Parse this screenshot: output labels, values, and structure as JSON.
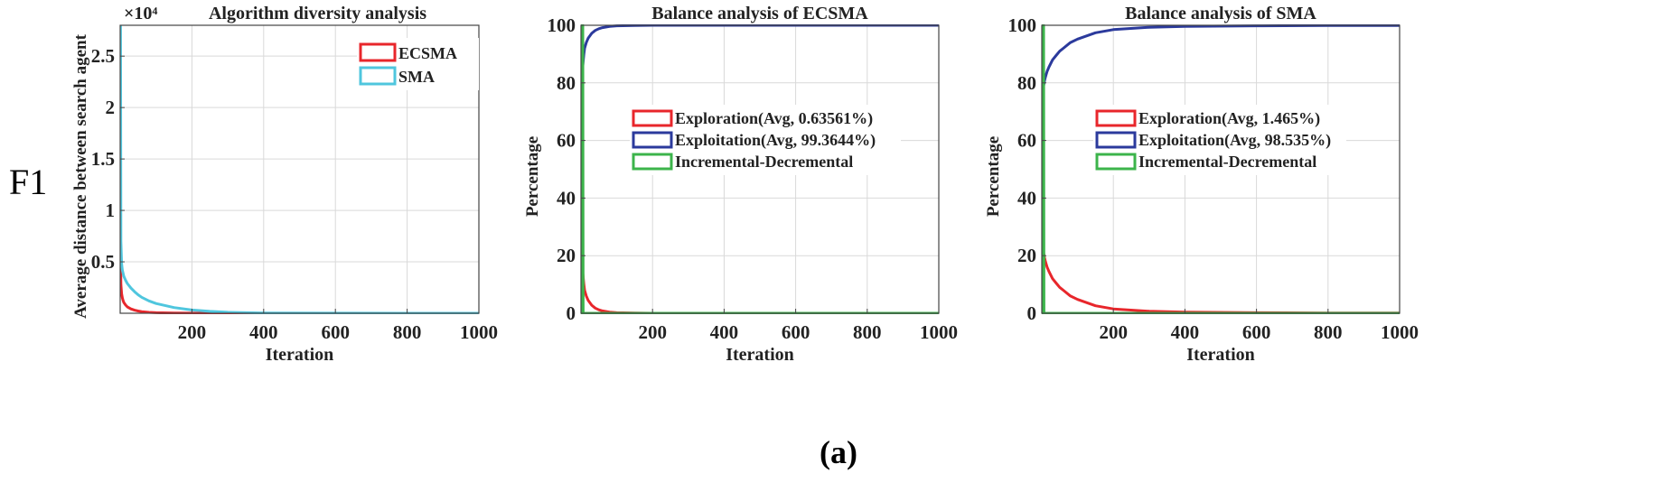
{
  "figure": {
    "side_label": "F1",
    "panel_label": "(a)"
  },
  "colors": {
    "ecsma": "#e8262b",
    "sma": "#4fc6de",
    "exploration": "#e8262b",
    "exploitation": "#2b3a9c",
    "incdec": "#3cb44b",
    "grid": "#d9d9d9",
    "axis": "#444444"
  },
  "chart_data": [
    {
      "type": "line",
      "title": "Algorithm diversity analysis",
      "xlabel": "Iteration",
      "ylabel": "Average distance between search agent",
      "xlim": [
        0,
        1000
      ],
      "ylim": [
        0,
        28000
      ],
      "x_ticks": [
        200,
        400,
        600,
        800,
        1000
      ],
      "y_ticks": [
        5000,
        10000,
        15000,
        20000,
        25000
      ],
      "y_tick_labels": [
        "0.5",
        "1",
        "1.5",
        "2",
        "2.5"
      ],
      "y_exponent": "×10⁴",
      "legend_position": "top-right",
      "series": [
        {
          "name": "ECSMA",
          "color_key": "ecsma",
          "x": [
            1,
            2,
            4,
            6,
            8,
            10,
            15,
            20,
            30,
            40,
            50,
            60,
            80,
            100,
            150,
            200,
            300,
            400,
            600,
            800,
            1000
          ],
          "y": [
            5500,
            2800,
            1900,
            1500,
            1250,
            1050,
            800,
            620,
            420,
            300,
            220,
            160,
            90,
            50,
            15,
            5,
            0,
            0,
            0,
            0,
            0
          ]
        },
        {
          "name": "SMA",
          "color_key": "sma",
          "x": [
            1,
            2,
            4,
            6,
            8,
            10,
            15,
            20,
            30,
            40,
            50,
            60,
            80,
            100,
            150,
            200,
            250,
            300,
            400,
            600,
            800,
            1000
          ],
          "y": [
            28000,
            7000,
            4800,
            4200,
            3900,
            3600,
            3200,
            2900,
            2450,
            2100,
            1800,
            1550,
            1200,
            950,
            550,
            320,
            180,
            100,
            30,
            5,
            0,
            0
          ]
        }
      ]
    },
    {
      "type": "line",
      "title": "Balance analysis of ECSMA",
      "xlabel": "Iteration",
      "ylabel": "Percentage",
      "xlim": [
        0,
        1000
      ],
      "ylim": [
        0,
        100
      ],
      "x_ticks": [
        200,
        400,
        600,
        800,
        1000
      ],
      "y_ticks": [
        0,
        20,
        40,
        60,
        80,
        100
      ],
      "legend_position": "center",
      "series": [
        {
          "name": "Exploration(Avg, 0.63561%)",
          "color_key": "exploration",
          "x": [
            1,
            3,
            5,
            8,
            10,
            15,
            20,
            30,
            40,
            50,
            60,
            80,
            100,
            150,
            200,
            400,
            600,
            800,
            1000
          ],
          "y": [
            26,
            18,
            14,
            10,
            8,
            6,
            4.5,
            2.8,
            1.8,
            1.2,
            0.8,
            0.4,
            0.2,
            0.1,
            0,
            0,
            0,
            0,
            0
          ]
        },
        {
          "name": "Exploitation(Avg, 99.3644%)",
          "color_key": "exploitation",
          "x": [
            1,
            3,
            5,
            8,
            10,
            15,
            20,
            30,
            40,
            50,
            60,
            80,
            100,
            150,
            200,
            400,
            600,
            800,
            1000
          ],
          "y": [
            74,
            82,
            86,
            90,
            92,
            94,
            95.5,
            97.2,
            98.2,
            98.8,
            99.2,
            99.6,
            99.8,
            99.9,
            100,
            100,
            100,
            100,
            100
          ]
        },
        {
          "name": "Incremental-Decremental",
          "color_key": "incdec",
          "x": [
            1,
            2,
            3,
            4,
            5,
            6,
            8,
            10,
            1000
          ],
          "y": [
            100,
            0,
            100,
            0,
            100,
            0,
            0,
            0,
            0
          ]
        }
      ]
    },
    {
      "type": "line",
      "title": "Balance analysis of SMA",
      "xlabel": "Iteration",
      "ylabel": "Percentage",
      "xlim": [
        0,
        1000
      ],
      "ylim": [
        0,
        100
      ],
      "x_ticks": [
        200,
        400,
        600,
        800,
        1000
      ],
      "y_ticks": [
        0,
        20,
        40,
        60,
        80,
        100
      ],
      "legend_position": "center",
      "series": [
        {
          "name": "Exploration(Avg, 1.465%)",
          "color_key": "exploration",
          "x": [
            1,
            3,
            5,
            8,
            10,
            15,
            20,
            30,
            40,
            50,
            60,
            80,
            100,
            150,
            200,
            300,
            400,
            600,
            800,
            1000
          ],
          "y": [
            28,
            24,
            21,
            19,
            18,
            16,
            14.5,
            12,
            10.5,
            9,
            8,
            6,
            4.8,
            2.6,
            1.5,
            0.7,
            0.4,
            0.2,
            0.1,
            0.1
          ]
        },
        {
          "name": "Exploitation(Avg, 98.535%)",
          "color_key": "exploitation",
          "x": [
            1,
            3,
            5,
            8,
            10,
            15,
            20,
            30,
            40,
            50,
            60,
            80,
            100,
            150,
            200,
            300,
            400,
            600,
            800,
            1000
          ],
          "y": [
            72,
            76,
            79,
            81,
            82,
            84,
            85.5,
            88,
            89.5,
            91,
            92,
            94,
            95.2,
            97.4,
            98.5,
            99.3,
            99.6,
            99.8,
            99.9,
            99.9
          ]
        },
        {
          "name": "Incremental-Decremental",
          "color_key": "incdec",
          "x": [
            1,
            2,
            3,
            4,
            5,
            6,
            8,
            10,
            1000
          ],
          "y": [
            100,
            0,
            100,
            0,
            100,
            0,
            0,
            0,
            0
          ]
        }
      ]
    }
  ]
}
